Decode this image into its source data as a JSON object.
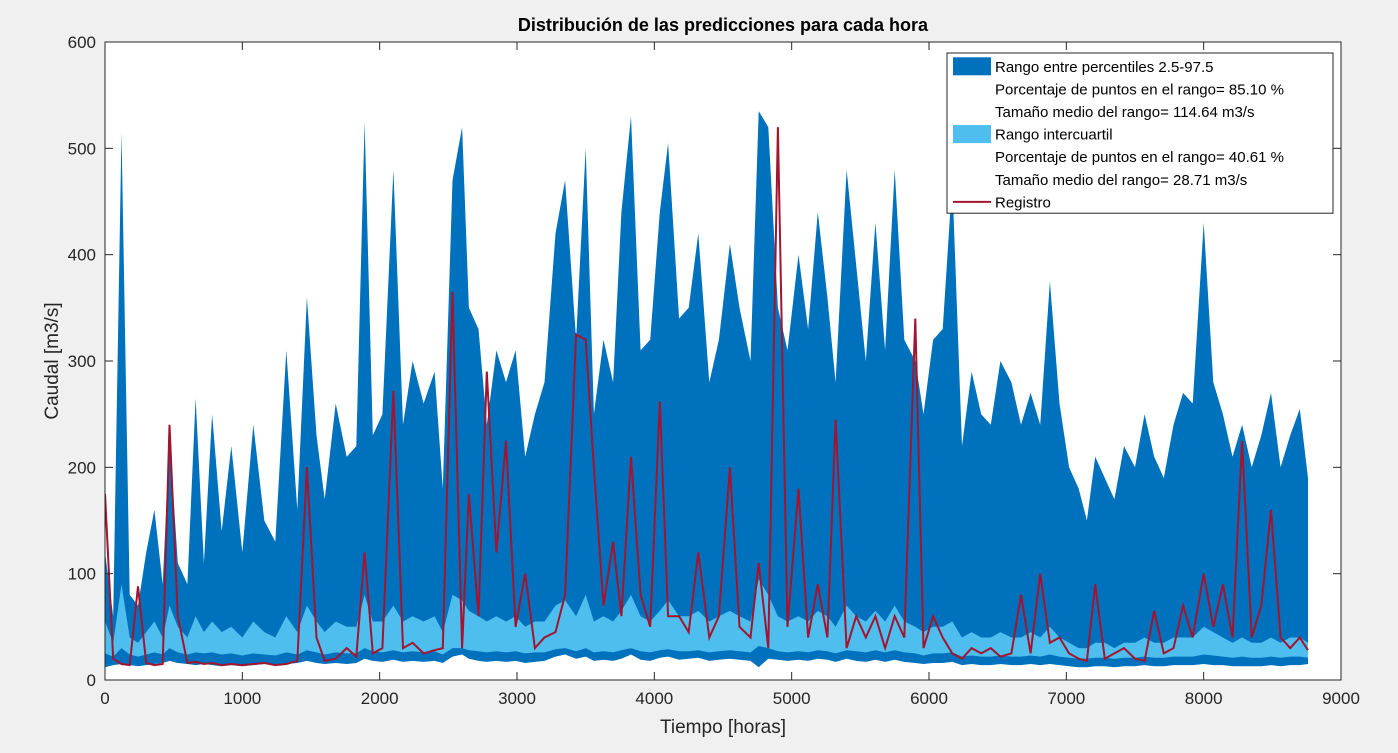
{
  "chart_data": {
    "type": "area",
    "title": "Distribución de las predicciones para cada hora",
    "xlabel": "Tiempo [horas]",
    "ylabel": "Caudal [m3/s]",
    "xlim": [
      0,
      9000
    ],
    "ylim": [
      0,
      600
    ],
    "xticks": [
      0,
      1000,
      2000,
      3000,
      4000,
      5000,
      6000,
      7000,
      8000,
      9000
    ],
    "yticks": [
      0,
      100,
      200,
      300,
      400,
      500,
      600
    ],
    "grid": false,
    "legend_position": "top-right",
    "colors": {
      "band_outer": "#0072bd",
      "band_inner": "#4dbeee",
      "registro": "#a2142f"
    },
    "legend": [
      {
        "kind": "band_outer",
        "text": "Rango entre percentiles 2.5-97.5"
      },
      {
        "kind": "none",
        "text": "Porcentaje de puntos en el rango= 85.10 %"
      },
      {
        "kind": "none",
        "text": "Tamaño medio del rango= 114.64 m3/s"
      },
      {
        "kind": "band_inner",
        "text": "Rango intercuartil"
      },
      {
        "kind": "none",
        "text": "Porcentaje de puntos en el rango= 40.61 %"
      },
      {
        "kind": "none",
        "text": "Tamaño medio del rango= 28.71 m3/s"
      },
      {
        "kind": "line",
        "text": "Registro"
      }
    ],
    "x": [
      0,
      60,
      120,
      180,
      240,
      300,
      360,
      420,
      470,
      530,
      600,
      660,
      720,
      780,
      850,
      920,
      1000,
      1080,
      1160,
      1240,
      1320,
      1400,
      1470,
      1540,
      1600,
      1680,
      1760,
      1830,
      1890,
      1950,
      2020,
      2100,
      2170,
      2240,
      2320,
      2400,
      2460,
      2530,
      2600,
      2650,
      2720,
      2780,
      2850,
      2920,
      2990,
      3060,
      3130,
      3200,
      3280,
      3350,
      3430,
      3500,
      3560,
      3630,
      3700,
      3760,
      3830,
      3900,
      3970,
      4040,
      4100,
      4180,
      4250,
      4320,
      4400,
      4470,
      4550,
      4620,
      4700,
      4760,
      4830,
      4900,
      4970,
      5050,
      5120,
      5190,
      5260,
      5320,
      5400,
      5470,
      5540,
      5610,
      5680,
      5750,
      5820,
      5900,
      5960,
      6030,
      6100,
      6170,
      6240,
      6310,
      6380,
      6450,
      6520,
      6600,
      6670,
      6740,
      6810,
      6880,
      6950,
      7020,
      7090,
      7150,
      7210,
      7280,
      7350,
      7420,
      7500,
      7570,
      7640,
      7710,
      7780,
      7850,
      7920,
      8000,
      8070,
      8140,
      8210,
      8280,
      8350,
      8420,
      8490,
      8560,
      8630,
      8700,
      8760
    ],
    "series": [
      {
        "name": "Rango entre percentiles 2.5-97.5",
        "role": "upper",
        "values": [
          120,
          60,
          515,
          80,
          70,
          120,
          160,
          90,
          230,
          110,
          90,
          265,
          110,
          250,
          140,
          220,
          120,
          240,
          150,
          130,
          310,
          160,
          360,
          230,
          170,
          260,
          210,
          220,
          525,
          230,
          250,
          480,
          240,
          300,
          260,
          290,
          180,
          470,
          520,
          350,
          330,
          240,
          310,
          280,
          310,
          210,
          250,
          280,
          420,
          470,
          320,
          500,
          250,
          320,
          280,
          440,
          530,
          310,
          320,
          440,
          505,
          340,
          350,
          420,
          280,
          320,
          410,
          350,
          300,
          535,
          520,
          350,
          310,
          400,
          330,
          440,
          360,
          280,
          480,
          390,
          300,
          430,
          310,
          480,
          320,
          300,
          250,
          320,
          330,
          470,
          220,
          290,
          250,
          240,
          300,
          280,
          240,
          270,
          240,
          375,
          260,
          200,
          180,
          150,
          210,
          190,
          170,
          220,
          200,
          250,
          210,
          190,
          240,
          270,
          260,
          430,
          280,
          250,
          210,
          240,
          200,
          230,
          270,
          200,
          230,
          255,
          190
        ]
      },
      {
        "name": "Rango entre percentiles 2.5-97.5",
        "role": "lower",
        "values": [
          12,
          14,
          15,
          14,
          13,
          14,
          15,
          16,
          18,
          16,
          15,
          14,
          15,
          14,
          13,
          14,
          13,
          14,
          15,
          14,
          15,
          16,
          18,
          16,
          15,
          16,
          15,
          16,
          20,
          18,
          17,
          19,
          17,
          18,
          17,
          18,
          16,
          22,
          24,
          20,
          18,
          17,
          18,
          17,
          18,
          16,
          17,
          18,
          22,
          24,
          20,
          22,
          18,
          19,
          18,
          20,
          24,
          19,
          18,
          21,
          22,
          19,
          20,
          21,
          18,
          19,
          20,
          19,
          18,
          12,
          20,
          19,
          18,
          19,
          18,
          20,
          19,
          17,
          20,
          18,
          17,
          19,
          17,
          19,
          17,
          16,
          15,
          16,
          16,
          17,
          14,
          15,
          14,
          14,
          15,
          14,
          14,
          15,
          14,
          15,
          14,
          13,
          12,
          12,
          13,
          13,
          12,
          13,
          13,
          14,
          13,
          13,
          14,
          14,
          14,
          15,
          14,
          14,
          13,
          13,
          13,
          13,
          14,
          13,
          14,
          14,
          15
        ]
      },
      {
        "name": "Rango intercuartil",
        "role": "upper",
        "values": [
          55,
          35,
          90,
          40,
          35,
          45,
          55,
          40,
          70,
          50,
          40,
          60,
          45,
          55,
          45,
          50,
          40,
          55,
          45,
          40,
          60,
          45,
          70,
          55,
          45,
          55,
          50,
          50,
          80,
          55,
          55,
          70,
          55,
          60,
          55,
          60,
          45,
          80,
          75,
          65,
          60,
          55,
          60,
          55,
          60,
          50,
          55,
          55,
          70,
          75,
          60,
          80,
          55,
          60,
          55,
          65,
          80,
          60,
          55,
          65,
          75,
          60,
          60,
          65,
          55,
          60,
          65,
          60,
          55,
          95,
          80,
          60,
          55,
          60,
          55,
          65,
          60,
          50,
          70,
          60,
          55,
          65,
          55,
          70,
          55,
          50,
          45,
          50,
          50,
          55,
          40,
          45,
          40,
          40,
          45,
          40,
          40,
          45,
          40,
          50,
          40,
          35,
          30,
          30,
          35,
          35,
          30,
          35,
          35,
          40,
          35,
          35,
          40,
          40,
          40,
          50,
          45,
          40,
          35,
          40,
          35,
          35,
          40,
          35,
          40,
          40,
          35
        ]
      },
      {
        "name": "Rango intercuartil",
        "role": "lower",
        "values": [
          25,
          22,
          30,
          24,
          22,
          24,
          26,
          24,
          30,
          26,
          24,
          26,
          25,
          26,
          24,
          25,
          23,
          25,
          24,
          23,
          26,
          24,
          28,
          26,
          24,
          26,
          25,
          25,
          30,
          27,
          26,
          28,
          26,
          27,
          26,
          27,
          24,
          30,
          30,
          28,
          27,
          26,
          27,
          26,
          27,
          25,
          26,
          26,
          29,
          30,
          27,
          30,
          26,
          27,
          26,
          28,
          30,
          27,
          26,
          28,
          29,
          27,
          27,
          28,
          26,
          27,
          28,
          27,
          26,
          32,
          30,
          27,
          26,
          27,
          26,
          28,
          27,
          25,
          28,
          27,
          26,
          28,
          26,
          28,
          26,
          25,
          23,
          25,
          25,
          26,
          22,
          23,
          22,
          22,
          23,
          22,
          22,
          23,
          22,
          24,
          22,
          21,
          20,
          20,
          21,
          21,
          20,
          21,
          21,
          22,
          21,
          21,
          22,
          22,
          22,
          24,
          23,
          22,
          21,
          22,
          21,
          21,
          22,
          21,
          22,
          22,
          21
        ]
      },
      {
        "name": "Registro",
        "role": "line",
        "values": [
          175,
          20,
          15,
          14,
          88,
          16,
          14,
          15,
          240,
          60,
          16,
          17,
          15,
          16,
          14,
          15,
          14,
          15,
          16,
          14,
          15,
          18,
          200,
          40,
          18,
          20,
          30,
          22,
          120,
          25,
          30,
          272,
          30,
          35,
          25,
          28,
          30,
          365,
          30,
          175,
          60,
          290,
          120,
          225,
          50,
          100,
          30,
          40,
          45,
          80,
          325,
          320,
          200,
          70,
          130,
          60,
          210,
          80,
          50,
          262,
          60,
          60,
          45,
          120,
          40,
          60,
          200,
          50,
          40,
          110,
          30,
          520,
          50,
          180,
          40,
          90,
          40,
          245,
          30,
          60,
          40,
          60,
          30,
          60,
          40,
          340,
          30,
          60,
          40,
          25,
          20,
          30,
          25,
          30,
          22,
          25,
          80,
          25,
          100,
          35,
          40,
          25,
          20,
          18,
          90,
          20,
          25,
          30,
          20,
          18,
          65,
          25,
          30,
          70,
          40,
          100,
          50,
          90,
          40,
          225,
          40,
          70,
          160,
          40,
          30,
          40,
          28
        ]
      }
    ]
  }
}
